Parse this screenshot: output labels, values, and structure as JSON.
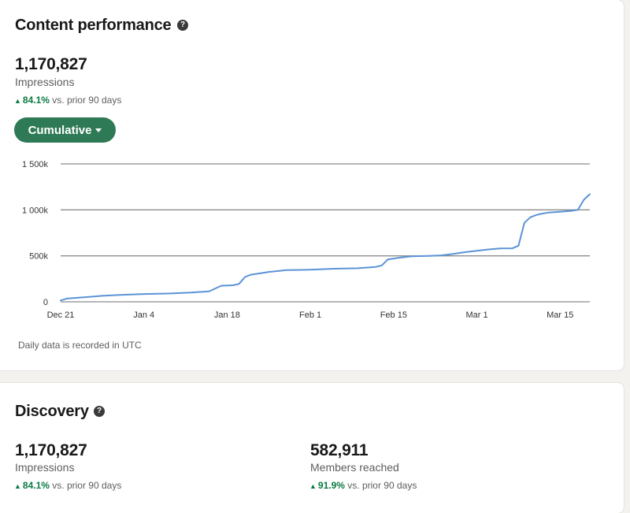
{
  "content_performance": {
    "title": "Content performance",
    "impressions_value": "1,170,827",
    "impressions_label": "Impressions",
    "impressions_change": "84.1%",
    "comparison_text": "vs. prior 90 days",
    "toggle_label": "Cumulative",
    "footnote": "Daily data is recorded in UTC"
  },
  "discovery": {
    "title": "Discovery",
    "impressions_value": "1,170,827",
    "impressions_label": "Impressions",
    "impressions_change": "84.1%",
    "members_value": "582,911",
    "members_label": "Members reached",
    "members_change": "91.9%",
    "comparison_text": "vs. prior 90 days"
  },
  "icons": {
    "help": "question-circle-icon",
    "trend_up": "triangle-up-icon",
    "dropdown": "caret-down-icon"
  },
  "colors": {
    "line": "#5b93d6",
    "button": "#2f7a56",
    "positive": "#0a7a43",
    "gridline": "#8c8c8c"
  },
  "chart_data": {
    "type": "line",
    "title": "",
    "xlabel": "",
    "ylabel": "",
    "ylim": [
      0,
      1500000
    ],
    "y_ticks": [
      0,
      500000,
      1000000,
      1500000
    ],
    "y_tick_labels": [
      "0",
      "500k",
      "1 000k",
      "1 500k"
    ],
    "x_tick_labels": [
      "Dec 21",
      "Jan 4",
      "Jan 18",
      "Feb 1",
      "Feb 15",
      "Mar 1",
      "Mar 15"
    ],
    "x_tick_days": [
      0,
      14,
      28,
      42,
      56,
      70,
      84
    ],
    "grid": true,
    "series": [
      {
        "name": "",
        "color": "#5b93d6",
        "points": [
          [
            0,
            15000
          ],
          [
            1,
            35000
          ],
          [
            3,
            45000
          ],
          [
            5,
            55000
          ],
          [
            7,
            65000
          ],
          [
            10,
            75000
          ],
          [
            14,
            85000
          ],
          [
            18,
            90000
          ],
          [
            20,
            95000
          ],
          [
            22,
            100000
          ],
          [
            24,
            110000
          ],
          [
            25,
            115000
          ],
          [
            27,
            175000
          ],
          [
            29,
            180000
          ],
          [
            30,
            195000
          ],
          [
            31,
            270000
          ],
          [
            32,
            295000
          ],
          [
            35,
            325000
          ],
          [
            38,
            345000
          ],
          [
            42,
            350000
          ],
          [
            46,
            360000
          ],
          [
            50,
            365000
          ],
          [
            53,
            380000
          ],
          [
            54,
            395000
          ],
          [
            55,
            460000
          ],
          [
            57,
            480000
          ],
          [
            59,
            495000
          ],
          [
            62,
            500000
          ],
          [
            64,
            505000
          ],
          [
            66,
            520000
          ],
          [
            68,
            540000
          ],
          [
            70,
            555000
          ],
          [
            72,
            570000
          ],
          [
            74,
            580000
          ],
          [
            76,
            582000
          ],
          [
            77,
            610000
          ],
          [
            78,
            860000
          ],
          [
            79,
            920000
          ],
          [
            80,
            945000
          ],
          [
            81,
            960000
          ],
          [
            82,
            970000
          ],
          [
            84,
            980000
          ],
          [
            86,
            990000
          ],
          [
            87,
            1000000
          ],
          [
            88,
            1110000
          ],
          [
            89,
            1170827
          ]
        ]
      }
    ]
  }
}
